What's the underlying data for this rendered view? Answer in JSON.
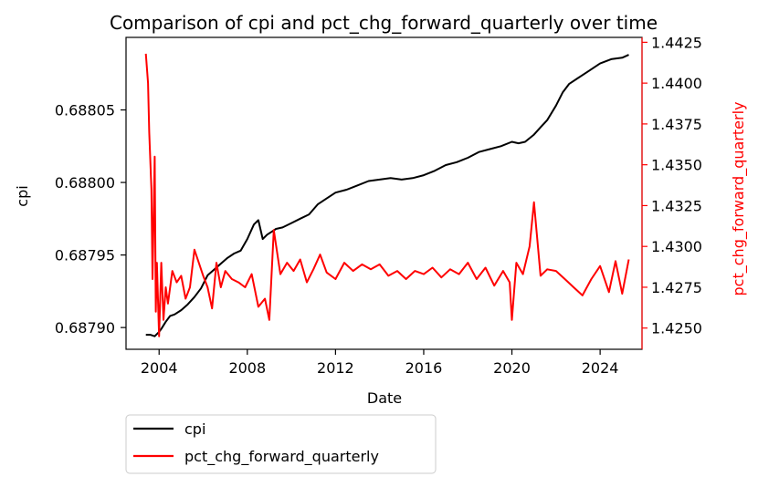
{
  "chart_data": {
    "type": "line",
    "title": "Comparison of cpi and pct_chg_forward_quarterly over time",
    "xlabel": "Date",
    "ylabel_left": "cpi",
    "ylabel_right": "pct_chg_forward_quarterly",
    "xlim": [
      2002.5,
      2025.9
    ],
    "ylim_left": [
      0.687885,
      0.6881
    ],
    "ylim_right": [
      1.4237,
      1.4428
    ],
    "x_ticks": [
      2004,
      2008,
      2012,
      2016,
      2020,
      2024
    ],
    "x_tick_labels": [
      "2004",
      "2008",
      "2012",
      "2016",
      "2020",
      "2024"
    ],
    "y_left_ticks": [
      0.6879,
      0.68795,
      0.688,
      0.68805
    ],
    "y_left_tick_labels": [
      "0.68790",
      "0.68795",
      "0.68800",
      "0.68805"
    ],
    "y_right_ticks": [
      1.425,
      1.4275,
      1.43,
      1.4325,
      1.435,
      1.4375,
      1.44,
      1.4425
    ],
    "y_right_tick_labels": [
      "1.4250",
      "1.4275",
      "1.4300",
      "1.4325",
      "1.4350",
      "1.4375",
      "1.4400",
      "1.4425"
    ],
    "legend_placement": "below-left",
    "grid": false,
    "series": [
      {
        "name": "cpi",
        "axis": "left",
        "color": "#000000",
        "x": [
          2003.4,
          2003.6,
          2003.8,
          2004.0,
          2004.1,
          2004.3,
          2004.5,
          2004.7,
          2005.0,
          2005.3,
          2005.6,
          2005.9,
          2006.2,
          2006.5,
          2006.8,
          2007.1,
          2007.4,
          2007.7,
          2008.0,
          2008.3,
          2008.5,
          2008.7,
          2008.9,
          2009.1,
          2009.3,
          2009.6,
          2010.0,
          2010.4,
          2010.8,
          2011.2,
          2011.6,
          2012.0,
          2012.5,
          2013.0,
          2013.5,
          2014.0,
          2014.5,
          2015.0,
          2015.5,
          2016.0,
          2016.5,
          2017.0,
          2017.5,
          2018.0,
          2018.5,
          2019.0,
          2019.5,
          2020.0,
          2020.3,
          2020.6,
          2021.0,
          2021.3,
          2021.6,
          2022.0,
          2022.3,
          2022.6,
          2023.0,
          2023.5,
          2024.0,
          2024.5,
          2025.0,
          2025.3
        ],
        "y": [
          0.687895,
          0.687895,
          0.687894,
          0.687897,
          0.687899,
          0.687904,
          0.687908,
          0.687909,
          0.687912,
          0.687916,
          0.687921,
          0.687927,
          0.687936,
          0.68794,
          0.687944,
          0.687948,
          0.687951,
          0.687953,
          0.687961,
          0.687971,
          0.687974,
          0.687961,
          0.687964,
          0.687966,
          0.687968,
          0.687969,
          0.687972,
          0.687975,
          0.687978,
          0.687985,
          0.687989,
          0.687993,
          0.687995,
          0.687998,
          0.688001,
          0.688002,
          0.688003,
          0.688002,
          0.688003,
          0.688005,
          0.688008,
          0.688012,
          0.688014,
          0.688017,
          0.688021,
          0.688023,
          0.688025,
          0.688028,
          0.688027,
          0.688028,
          0.688033,
          0.688038,
          0.688043,
          0.688053,
          0.688062,
          0.688068,
          0.688072,
          0.688077,
          0.688082,
          0.688085,
          0.688086,
          0.688088
        ]
      },
      {
        "name": "pct_chg_forward_quarterly",
        "axis": "right",
        "color": "#ff0000",
        "x": [
          2003.4,
          2003.5,
          2003.55,
          2003.65,
          2003.7,
          2003.8,
          2003.85,
          2003.9,
          2004.0,
          2004.1,
          2004.2,
          2004.3,
          2004.4,
          2004.6,
          2004.8,
          2005.0,
          2005.2,
          2005.4,
          2005.6,
          2005.8,
          2006.0,
          2006.2,
          2006.4,
          2006.6,
          2006.8,
          2007.0,
          2007.3,
          2007.6,
          2007.9,
          2008.2,
          2008.5,
          2008.8,
          2009.0,
          2009.2,
          2009.5,
          2009.8,
          2010.1,
          2010.4,
          2010.7,
          2011.0,
          2011.3,
          2011.6,
          2012.0,
          2012.4,
          2012.8,
          2013.2,
          2013.6,
          2014.0,
          2014.4,
          2014.8,
          2015.2,
          2015.6,
          2016.0,
          2016.4,
          2016.8,
          2017.2,
          2017.6,
          2018.0,
          2018.4,
          2018.8,
          2019.2,
          2019.6,
          2019.9,
          2020.0,
          2020.2,
          2020.5,
          2020.8,
          2021.0,
          2021.3,
          2021.6,
          2022.0,
          2022.4,
          2022.8,
          2023.2,
          2023.6,
          2024.0,
          2024.4,
          2024.7,
          2025.0,
          2025.2,
          2025.3
        ],
        "y": [
          1.4418,
          1.44,
          1.437,
          1.4335,
          1.428,
          1.4355,
          1.426,
          1.429,
          1.4245,
          1.429,
          1.4255,
          1.4275,
          1.4265,
          1.4285,
          1.4278,
          1.4282,
          1.4268,
          1.4275,
          1.4298,
          1.429,
          1.4282,
          1.4275,
          1.4262,
          1.429,
          1.4275,
          1.4285,
          1.428,
          1.4278,
          1.4275,
          1.4283,
          1.4263,
          1.4268,
          1.4255,
          1.431,
          1.4283,
          1.429,
          1.4285,
          1.4292,
          1.4278,
          1.4286,
          1.4295,
          1.4284,
          1.428,
          1.429,
          1.4285,
          1.4289,
          1.4286,
          1.4289,
          1.4282,
          1.4285,
          1.428,
          1.4285,
          1.4283,
          1.4287,
          1.4281,
          1.4286,
          1.4283,
          1.429,
          1.428,
          1.4287,
          1.4276,
          1.4285,
          1.4278,
          1.4255,
          1.429,
          1.4283,
          1.43,
          1.4327,
          1.4282,
          1.4286,
          1.4285,
          1.428,
          1.4275,
          1.427,
          1.428,
          1.4288,
          1.4272,
          1.4291,
          1.4271,
          1.4285,
          1.4292
        ]
      }
    ]
  }
}
